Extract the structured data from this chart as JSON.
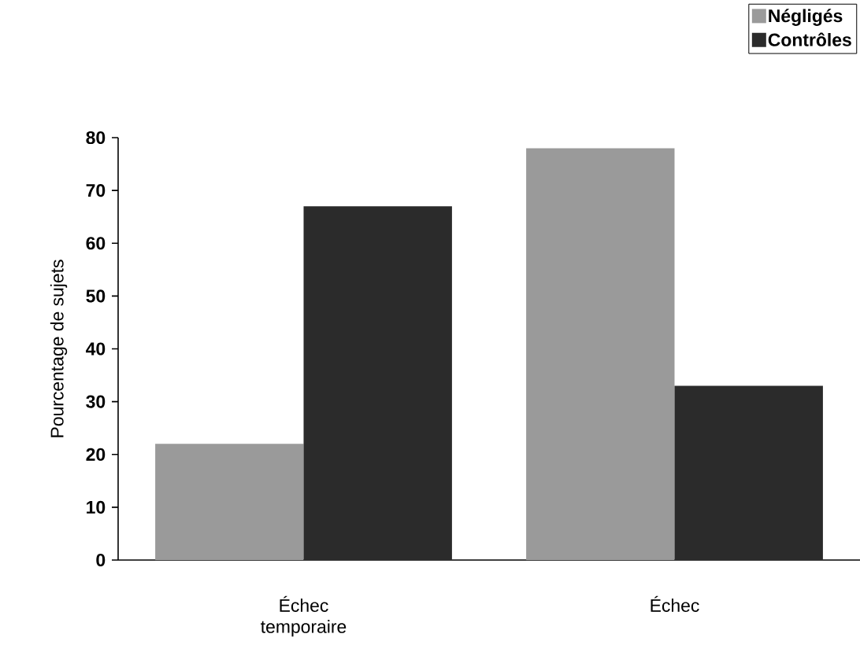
{
  "chart_data": {
    "type": "bar",
    "ylabel": "Pourcentage de sujets",
    "categories": [
      "Échec temporaire",
      "Échec"
    ],
    "series": [
      {
        "name": "Négligés",
        "color": "#9a9a9a",
        "values": [
          22,
          78
        ]
      },
      {
        "name": "Contrôles",
        "color": "#2b2b2b",
        "values": [
          67,
          33
        ]
      }
    ],
    "ylim": [
      0,
      80
    ],
    "yticks": [
      0,
      10,
      20,
      30,
      40,
      50,
      60,
      70,
      80
    ],
    "legend": "top right"
  }
}
